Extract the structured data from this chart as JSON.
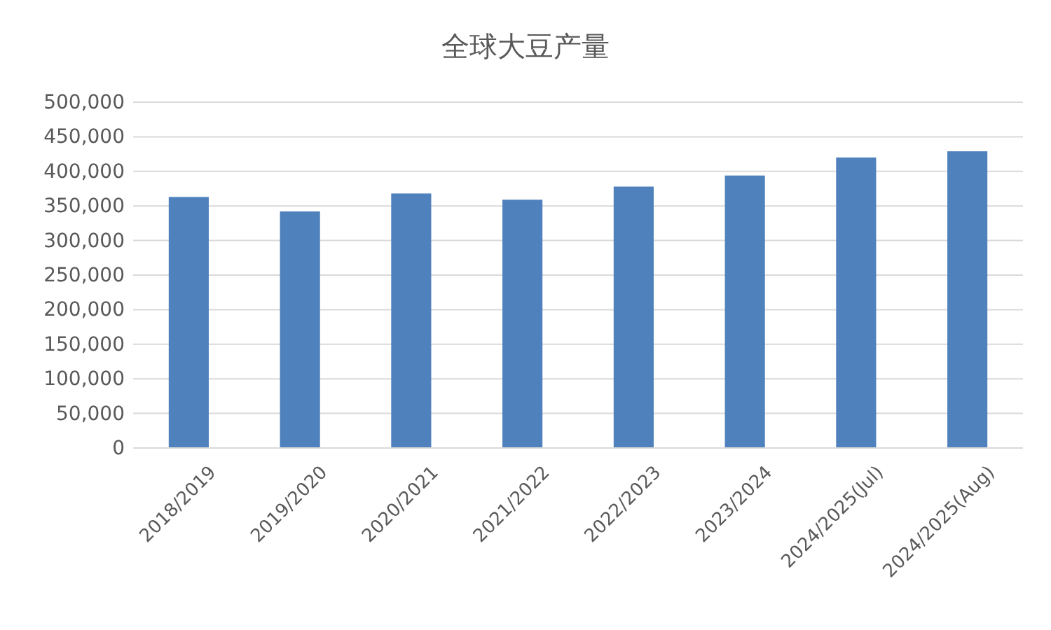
{
  "chart_data": {
    "type": "bar",
    "title": "全球大豆产量",
    "categories": [
      "2018/2019",
      "2019/2020",
      "2020/2021",
      "2021/2022",
      "2022/2023",
      "2023/2024",
      "2024/2025(Jul)",
      "2024/2025(Aug)"
    ],
    "values": [
      363000,
      342000,
      368000,
      359000,
      378000,
      394000,
      420000,
      429000
    ],
    "color": "#4f81bd",
    "ylim": [
      0,
      500000
    ],
    "yticks": [
      {
        "value": 0,
        "label": "0"
      },
      {
        "value": 50000,
        "label": "50,000"
      },
      {
        "value": 100000,
        "label": "100,000"
      },
      {
        "value": 150000,
        "label": "150,000"
      },
      {
        "value": 200000,
        "label": "200,000"
      },
      {
        "value": 250000,
        "label": "250,000"
      },
      {
        "value": 300000,
        "label": "300,000"
      },
      {
        "value": 350000,
        "label": "350,000"
      },
      {
        "value": 400000,
        "label": "400,000"
      },
      {
        "value": 450000,
        "label": "450,000"
      },
      {
        "value": 500000,
        "label": "500,000"
      }
    ],
    "grid": true
  }
}
